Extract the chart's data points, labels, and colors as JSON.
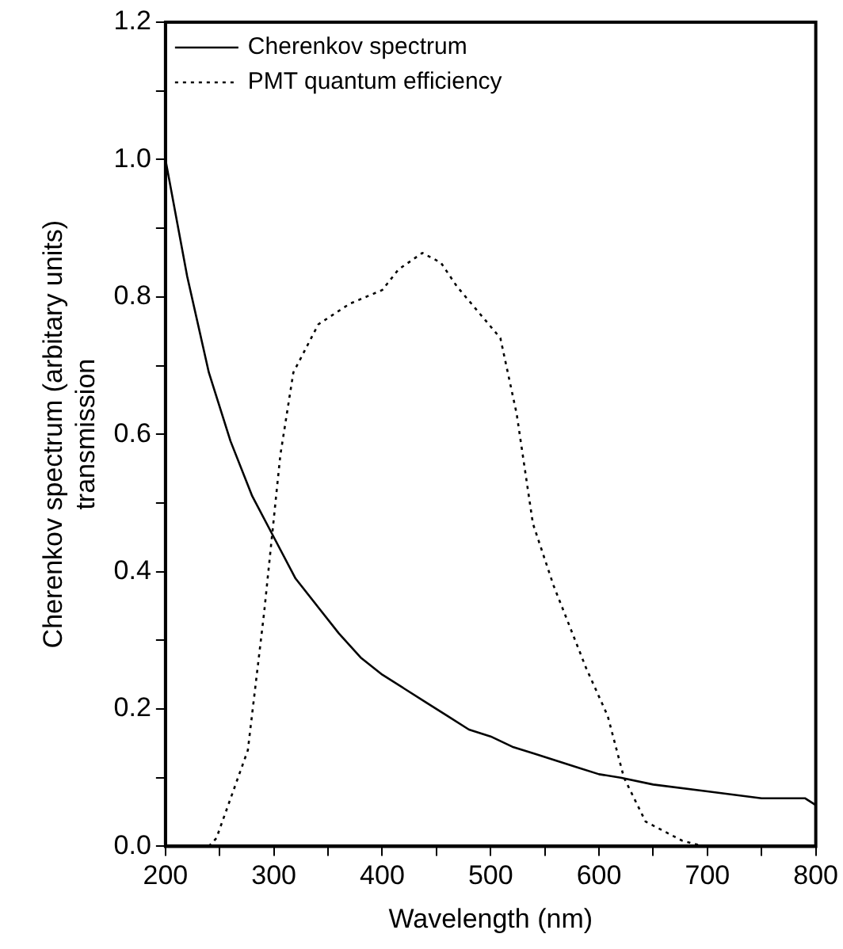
{
  "chart_data": {
    "type": "line",
    "xlabel": "Wavelength (nm)",
    "ylabel": "Cherenkov spectrum (arbitary units)\ntransmission",
    "xlim": [
      200,
      800
    ],
    "ylim": [
      0,
      1.2
    ],
    "xticks": [
      200,
      {
        "value": 250,
        "label": null
      },
      300,
      {
        "value": 350,
        "label": null
      },
      400,
      {
        "value": 450,
        "label": null
      },
      500,
      {
        "value": 550,
        "label": null
      },
      600,
      {
        "value": 650,
        "label": null
      },
      700,
      {
        "value": 750,
        "label": null
      },
      800
    ],
    "yticks": [
      {
        "value": 0,
        "label": "0.0"
      },
      {
        "value": 0.1,
        "label": null
      },
      0.2,
      {
        "value": 0.3,
        "label": null
      },
      0.4,
      {
        "value": 0.5,
        "label": null
      },
      0.6,
      {
        "value": 0.7,
        "label": null
      },
      0.8,
      {
        "value": 0.9,
        "label": null
      },
      {
        "value": 1,
        "label": "1.0"
      },
      {
        "value": 1.1,
        "label": null
      },
      1.2
    ],
    "grid": false,
    "legend": "top left",
    "marker": "none",
    "series": [
      {
        "name": "Cherenkov spectrum",
        "color": "#000000",
        "line_style": "solid",
        "x": [
          200,
          220,
          240,
          260,
          280,
          300,
          320,
          340,
          360,
          380,
          400,
          420,
          440,
          460,
          480,
          500,
          520,
          540,
          560,
          580,
          600,
          620,
          650,
          700,
          750,
          790,
          800
        ],
        "values": [
          1.0,
          0.83,
          0.69,
          0.59,
          0.51,
          0.45,
          0.39,
          0.35,
          0.31,
          0.275,
          0.25,
          0.23,
          0.21,
          0.19,
          0.17,
          0.16,
          0.145,
          0.135,
          0.125,
          0.115,
          0.105,
          0.1,
          0.09,
          0.08,
          0.07,
          0.07,
          0.06
        ]
      },
      {
        "name": "PMT quantum efficiency",
        "color": "#000000",
        "line_style": "dotted",
        "x": [
          240,
          247,
          276,
          291,
          306,
          318,
          341,
          370,
          400,
          415,
          437,
          454,
          469,
          509,
          524,
          539,
          558,
          588,
          608,
          623,
          643,
          677,
          697
        ],
        "values": [
          0,
          0.012,
          0.14,
          0.34,
          0.57,
          0.69,
          0.76,
          0.79,
          0.81,
          0.84,
          0.864,
          0.85,
          0.815,
          0.74,
          0.63,
          0.47,
          0.38,
          0.26,
          0.19,
          0.1,
          0.036,
          0.008,
          0
        ]
      }
    ]
  }
}
